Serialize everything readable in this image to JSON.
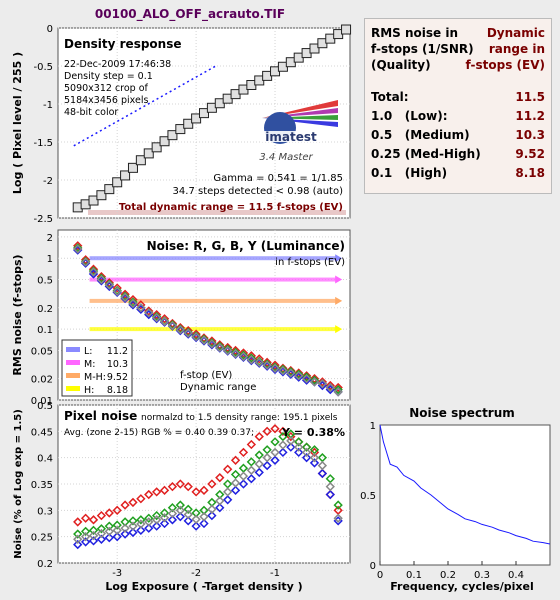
{
  "file_title": "00100_ALO_OFF_acrauto.TIF",
  "colors": {
    "background": "#ececec",
    "panel": "#ffffff",
    "rms_box": "#f8f0ec",
    "dark_red": "#7a0000",
    "luminance": "#8a8aff",
    "medium": "#ff66ff",
    "med_high": "#ffaa66",
    "high": "#ffff00"
  },
  "rms_box": {
    "heading_left": [
      "RMS noise in",
      "f-stops (1/SNR)",
      "(Quality)"
    ],
    "heading_right": [
      "Dynamic",
      "range in",
      "f-stops (EV)"
    ],
    "rows": [
      {
        "label": "Total:",
        "value": "11.5"
      },
      {
        "label": "1.0   (Low):",
        "value": "11.2"
      },
      {
        "label": "0.5   (Medium)",
        "value": "10.3"
      },
      {
        "label": "0.25 (Med-High)",
        "value": "9.52"
      },
      {
        "label": "0.1   (High)",
        "value": "8.18"
      }
    ]
  },
  "chart_data": [
    {
      "type": "scatter",
      "title": "Density response",
      "ylabel": "Log ( Pixel level / 255 )",
      "ylim": [
        -2.5,
        0
      ],
      "xlim": [
        -3.75,
        -0.05
      ],
      "y_ticks": [
        "0",
        "-0.5",
        "-1",
        "-1.5",
        "-2",
        "-2.5"
      ],
      "info_lines": [
        "22-Dec-2009 17:46:38",
        "Density step = 0.1",
        "5090x312 crop of",
        "5184x3456 pixels",
        "48-bit color"
      ],
      "logo_text": "imatest",
      "logo_subtext": "3.4  Master",
      "gamma_text": "Gamma = 0.541 = 1/1.85",
      "steps_text": "34.7 steps detected < 0.98 (auto)",
      "dynamic_range_text": "Total dynamic range = 11.5 f-stops (EV)",
      "series": [
        {
          "x": [
            -3.5,
            -3.4,
            -3.3,
            -3.2,
            -3.1,
            -3.0,
            -2.9,
            -2.8,
            -2.7,
            -2.6,
            -2.5,
            -2.4,
            -2.3,
            -2.2,
            -2.1,
            -2.0,
            -1.9,
            -1.8,
            -1.7,
            -1.6,
            -1.5,
            -1.4,
            -1.3,
            -1.2,
            -1.1,
            -1.0,
            -0.9,
            -0.8,
            -0.7,
            -0.6,
            -0.5,
            -0.4,
            -0.3,
            -0.2,
            -0.1
          ],
          "y": [
            -2.36,
            -2.32,
            -2.27,
            -2.2,
            -2.12,
            -2.03,
            -1.94,
            -1.84,
            -1.74,
            -1.65,
            -1.57,
            -1.49,
            -1.41,
            -1.33,
            -1.26,
            -1.19,
            -1.12,
            -1.05,
            -0.99,
            -0.93,
            -0.87,
            -0.81,
            -0.75,
            -0.69,
            -0.63,
            -0.57,
            -0.51,
            -0.45,
            -0.39,
            -0.33,
            -0.27,
            -0.2,
            -0.14,
            -0.08,
            -0.02
          ]
        },
        {
          "x": [
            -3.55,
            -1.75
          ],
          "y": [
            -1.55,
            -0.5
          ]
        }
      ]
    },
    {
      "type": "scatter",
      "title": "Noise: R, G, B, Y (Luminance)",
      "subtitle": "in f-stops (EV)",
      "ylabel": "RMS noise (f-stops)",
      "y_scale": "log",
      "ylim": [
        0.01,
        2.5
      ],
      "y_ticks": [
        "2",
        "1",
        "0.5",
        "0.2",
        "0.1",
        "0.05",
        "0.02",
        "0.01"
      ],
      "threshold_lines": [
        {
          "name": "L:",
          "value": 1.0,
          "ev": "11.2",
          "color": "#8a8aff"
        },
        {
          "name": "M:",
          "value": 0.5,
          "ev": "10.3",
          "color": "#ff66ff"
        },
        {
          "name": "M-H:",
          "value": 0.25,
          "ev": "9.52",
          "color": "#ffaa66"
        },
        {
          "name": "H:",
          "value": 0.1,
          "ev": "8.18",
          "color": "#ffff00"
        }
      ],
      "legend_note_1": "f-stop (EV)",
      "legend_note_2": "Dynamic range",
      "x": [
        -3.5,
        -3.4,
        -3.3,
        -3.2,
        -3.1,
        -3.0,
        -2.9,
        -2.8,
        -2.7,
        -2.6,
        -2.5,
        -2.4,
        -2.3,
        -2.2,
        -2.1,
        -2.0,
        -1.9,
        -1.8,
        -1.7,
        -1.6,
        -1.5,
        -1.4,
        -1.3,
        -1.2,
        -1.1,
        -1.0,
        -0.9,
        -0.8,
        -0.7,
        -0.6,
        -0.5,
        -0.4,
        -0.3,
        -0.2
      ],
      "series": [
        {
          "name": "R",
          "color": "#e02020",
          "values": [
            1.5,
            0.95,
            0.7,
            0.55,
            0.45,
            0.38,
            0.31,
            0.26,
            0.22,
            0.18,
            0.16,
            0.14,
            0.12,
            0.105,
            0.095,
            0.085,
            0.075,
            0.068,
            0.06,
            0.055,
            0.05,
            0.046,
            0.042,
            0.038,
            0.034,
            0.031,
            0.028,
            0.026,
            0.024,
            0.022,
            0.02,
            0.018,
            0.016,
            0.015
          ]
        },
        {
          "name": "G",
          "color": "#20a020",
          "values": [
            1.4,
            0.9,
            0.66,
            0.52,
            0.43,
            0.35,
            0.29,
            0.24,
            0.2,
            0.17,
            0.15,
            0.13,
            0.115,
            0.1,
            0.09,
            0.08,
            0.072,
            0.064,
            0.057,
            0.052,
            0.047,
            0.043,
            0.039,
            0.035,
            0.032,
            0.029,
            0.027,
            0.025,
            0.023,
            0.021,
            0.019,
            0.017,
            0.015,
            0.014
          ]
        },
        {
          "name": "B",
          "color": "#2020e0",
          "values": [
            1.3,
            0.85,
            0.6,
            0.48,
            0.4,
            0.33,
            0.27,
            0.22,
            0.19,
            0.16,
            0.14,
            0.125,
            0.11,
            0.095,
            0.085,
            0.076,
            0.068,
            0.06,
            0.054,
            0.049,
            0.044,
            0.04,
            0.036,
            0.033,
            0.03,
            0.027,
            0.025,
            0.023,
            0.021,
            0.019,
            0.018,
            0.016,
            0.014,
            0.013
          ]
        },
        {
          "name": "Y",
          "color": "#888888",
          "values": [
            1.35,
            0.88,
            0.64,
            0.5,
            0.42,
            0.34,
            0.28,
            0.23,
            0.2,
            0.17,
            0.145,
            0.128,
            0.112,
            0.098,
            0.088,
            0.078,
            0.07,
            0.062,
            0.055,
            0.05,
            0.045,
            0.041,
            0.037,
            0.034,
            0.031,
            0.028,
            0.026,
            0.024,
            0.022,
            0.02,
            0.018,
            0.017,
            0.015,
            0.013
          ]
        }
      ]
    },
    {
      "type": "scatter",
      "title": "Pixel noise",
      "subtitle": "normalzd to 1.5 density range: 195.1 pixels",
      "summary": "Avg. (zone 2-15) RGB % = 0.40  0.39  0.37;",
      "summary_y": "Y = 0.38%",
      "ylabel": "Noise (% of Log exp = 1.5)",
      "xlabel": "Log Exposure ( -Target density )",
      "ylim": [
        0.2,
        0.5
      ],
      "xlim": [
        -3.75,
        -0.05
      ],
      "x_ticks": [
        "-3",
        "-2",
        "-1"
      ],
      "y_ticks": [
        "0.5",
        "0.45",
        "0.4",
        "0.35",
        "0.3",
        "0.25",
        "0.2"
      ],
      "x": [
        -3.5,
        -3.4,
        -3.3,
        -3.2,
        -3.1,
        -3.0,
        -2.9,
        -2.8,
        -2.7,
        -2.6,
        -2.5,
        -2.4,
        -2.3,
        -2.2,
        -2.1,
        -2.0,
        -1.9,
        -1.8,
        -1.7,
        -1.6,
        -1.5,
        -1.4,
        -1.3,
        -1.2,
        -1.1,
        -1.0,
        -0.9,
        -0.8,
        -0.7,
        -0.6,
        -0.5,
        -0.4,
        -0.3,
        -0.2
      ],
      "series": [
        {
          "name": "R",
          "color": "#e02020",
          "values": [
            0.278,
            0.285,
            0.282,
            0.29,
            0.295,
            0.3,
            0.31,
            0.315,
            0.322,
            0.33,
            0.335,
            0.338,
            0.345,
            0.35,
            0.345,
            0.335,
            0.338,
            0.35,
            0.362,
            0.378,
            0.395,
            0.41,
            0.425,
            0.44,
            0.45,
            0.455,
            0.45,
            0.44,
            0.43,
            0.42,
            0.41,
            0.37,
            0.33,
            0.3
          ]
        },
        {
          "name": "G",
          "color": "#20a020",
          "values": [
            0.255,
            0.26,
            0.262,
            0.265,
            0.27,
            0.272,
            0.278,
            0.28,
            0.282,
            0.285,
            0.29,
            0.295,
            0.305,
            0.31,
            0.302,
            0.295,
            0.3,
            0.315,
            0.33,
            0.35,
            0.368,
            0.38,
            0.392,
            0.405,
            0.415,
            0.43,
            0.44,
            0.445,
            0.43,
            0.42,
            0.415,
            0.4,
            0.36,
            0.31
          ]
        },
        {
          "name": "B",
          "color": "#2020e0",
          "values": [
            0.235,
            0.24,
            0.242,
            0.245,
            0.248,
            0.25,
            0.255,
            0.258,
            0.262,
            0.266,
            0.27,
            0.275,
            0.282,
            0.288,
            0.28,
            0.27,
            0.275,
            0.29,
            0.305,
            0.32,
            0.338,
            0.35,
            0.36,
            0.372,
            0.385,
            0.395,
            0.41,
            0.42,
            0.41,
            0.4,
            0.39,
            0.37,
            0.33,
            0.28
          ]
        },
        {
          "name": "Y",
          "color": "#888888",
          "values": [
            0.245,
            0.25,
            0.252,
            0.256,
            0.26,
            0.262,
            0.266,
            0.27,
            0.274,
            0.278,
            0.282,
            0.286,
            0.294,
            0.3,
            0.292,
            0.283,
            0.288,
            0.302,
            0.318,
            0.335,
            0.352,
            0.365,
            0.376,
            0.388,
            0.4,
            0.41,
            0.424,
            0.432,
            0.42,
            0.41,
            0.4,
            0.385,
            0.345,
            0.285
          ]
        }
      ]
    },
    {
      "type": "line",
      "title": "Noise spectrum",
      "xlabel": "Frequency, cycles/pixel",
      "xlim": [
        0,
        0.5
      ],
      "ylim": [
        0,
        1
      ],
      "x_ticks": [
        "0",
        "0.1",
        "0.2",
        "0.3",
        "0.4"
      ],
      "y_ticks": [
        "1",
        "0.5",
        "0"
      ],
      "series": [
        {
          "x": [
            0,
            0.01,
            0.02,
            0.03,
            0.05,
            0.07,
            0.1,
            0.12,
            0.15,
            0.18,
            0.2,
            0.23,
            0.25,
            0.28,
            0.3,
            0.33,
            0.35,
            0.38,
            0.4,
            0.43,
            0.45,
            0.48,
            0.5
          ],
          "y": [
            1.0,
            0.88,
            0.8,
            0.72,
            0.7,
            0.64,
            0.6,
            0.55,
            0.5,
            0.44,
            0.4,
            0.36,
            0.33,
            0.31,
            0.29,
            0.27,
            0.25,
            0.23,
            0.21,
            0.19,
            0.17,
            0.16,
            0.15
          ]
        }
      ]
    }
  ]
}
